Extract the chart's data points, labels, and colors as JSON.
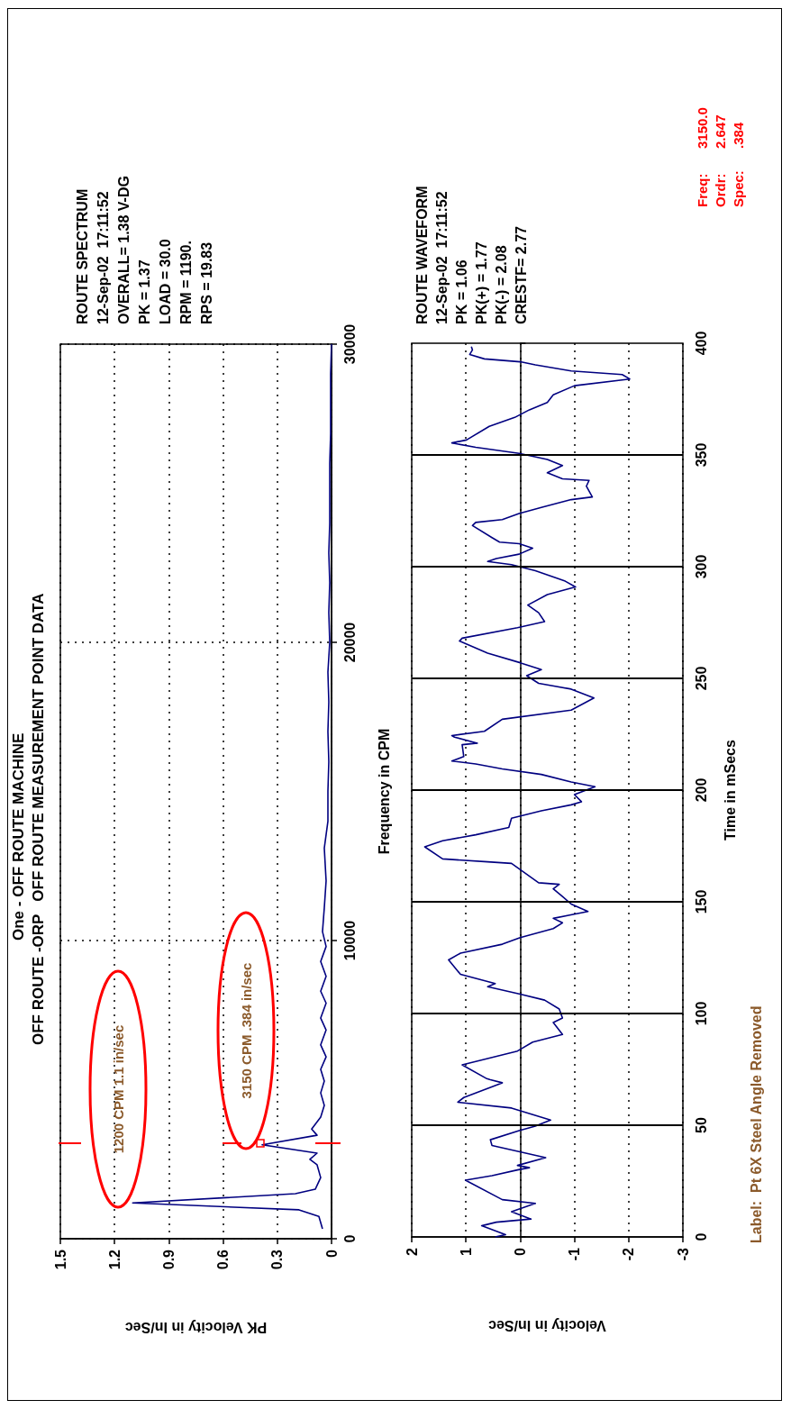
{
  "chart_data": [
    {
      "type": "line",
      "title": "One - OFF ROUTE MACHINE",
      "subtitle": "OFF ROUTE -ORP   OFF ROUTE MEASUREMENT POINT DATA",
      "xlabel": "PK Velocity in In/Sec",
      "ylabel": "Frequency in CPM",
      "x": [
        0.05,
        0.07,
        0.18,
        1.1,
        0.2,
        0.09,
        0.06,
        0.08,
        0.12,
        0.08,
        0.384,
        0.08,
        0.11,
        0.06,
        0.04,
        0.06,
        0.04,
        0.06,
        0.03,
        0.06,
        0.03,
        0.06,
        0.03,
        0.06,
        0.03,
        0.06,
        0.03,
        0.05,
        0.04,
        0.03,
        0.04,
        0.02,
        0.02,
        0.015,
        0.02,
        0.015,
        0.02,
        0.01,
        0.015,
        0.01,
        0.015,
        0.01,
        0.01,
        0.01,
        0.005,
        0.005,
        0.005,
        0
      ],
      "values": [
        330,
        750,
        970,
        1200,
        1510,
        1660,
        2050,
        2480,
        2660,
        2870,
        3150,
        3470,
        3680,
        4080,
        4470,
        4890,
        5290,
        5680,
        6100,
        6500,
        7000,
        7400,
        7900,
        8300,
        8800,
        9300,
        9800,
        10300,
        11100,
        12000,
        13100,
        14000,
        15000,
        16000,
        17000,
        18000,
        19000,
        20000,
        21000,
        22000,
        23000,
        24000,
        25000,
        26000,
        27000,
        28000,
        29000,
        30000
      ],
      "color": "#000080",
      "xlim": [
        1.5,
        0
      ],
      "xticks": [
        0,
        0.3,
        0.6,
        0.9,
        1.2,
        1.5
      ],
      "ylim": [
        0,
        30000
      ],
      "yticks": [
        0,
        10000,
        20000,
        30000
      ],
      "grid": true,
      "annotations": [
        "1200 CPM 1.1 in/sec",
        "3150 CPM .384 in/sec",
        "ROUTE SPECTRUM\n12-Sep-02  17:11:52\nOVERALL= 1.38 V-DG\nPK = 1.37\nLOAD = 30.0\nRPM = 1190.\nRPS = 19.83"
      ]
    },
    {
      "type": "line",
      "xlabel": "Velocity in In/Sec",
      "ylabel": "Time in mSecs",
      "x": [
        0.46,
        0.27,
        0.71,
        0.44,
        -0.2,
        0.16,
        -0.28,
        0.33,
        1.01,
        0.52,
        0.05,
        -0.17,
        0.05,
        -0.47,
        0.52,
        0.55,
        0.02,
        -0.28,
        -0.56,
        0.16,
        1.15,
        1.04,
        0.33,
        0.55,
        0.63,
        1.07,
        0.05,
        -0.23,
        -0.78,
        -0.61,
        -0.78,
        -0.72,
        -0.45,
        0,
        0.6,
        0.46,
        1.1,
        1.32,
        1.1,
        0.33,
        0,
        -0.61,
        -0.78,
        -0.61,
        -1.25,
        -0.94,
        -0.78,
        -0.61,
        -0.72,
        -0.34,
        0.16,
        0.6,
        1.43,
        1.76,
        1.43,
        0.82,
        0.21,
        0.16,
        -0.39,
        -0.94,
        -1.13,
        -1,
        -1.38,
        -0.94,
        -0.39,
        0.33,
        0.82,
        1.26,
        1.04,
        1.07,
        0.79,
        1.21,
        1.26,
        0.66,
        0.33,
        -0.94,
        -1.36,
        -0.94,
        -0.34,
        -0.12,
        -0.39,
        0,
        0.6,
        1.12,
        1.07,
        0.05,
        -0.45,
        -0.34,
        -0.14,
        -0.5,
        -1.02,
        -0.83,
        -0.28,
        0.16,
        0.6,
        0.44,
        0.02,
        -0.23,
        0.02,
        0.38,
        0.52,
        0.88,
        0.82,
        0.33,
        0.02,
        -0.39,
        -0.94,
        -1.33,
        -1.22,
        -1.27,
        -0.78,
        -0.5,
        -0.78,
        -0.5,
        0.02,
        0.82,
        1.26,
        0.99,
        0.57,
        0.1,
        -0.17,
        -0.5,
        -0.61,
        -1,
        -2.02,
        -1.88,
        -0.94,
        -0.28,
        0,
        0.66,
        0.93,
        0.88,
        0.9
      ],
      "values": [
        0,
        1,
        5,
        6.6,
        8,
        11.3,
        15,
        16.7,
        25.4,
        27.4,
        30,
        31,
        32,
        35.5,
        40.9,
        43.5,
        47.6,
        49.6,
        52.3,
        57.7,
        60.3,
        62.4,
        69,
        70.4,
        71,
        77,
        83.2,
        87.2,
        90.6,
        96,
        98,
        102,
        106,
        108.7,
        112,
        113.4,
        117.5,
        124,
        127,
        131,
        134,
        138,
        140.6,
        142.6,
        145.7,
        149,
        152.4,
        155.8,
        157.8,
        158.5,
        167.2,
        167.9,
        169.2,
        174.6,
        177.3,
        180,
        183.3,
        187.4,
        190.7,
        193.4,
        194.8,
        198,
        201.5,
        203.6,
        207,
        209.5,
        211.7,
        213,
        215,
        220.3,
        221,
        223.7,
        224.4,
        226.3,
        231.7,
        235.8,
        241.2,
        245.2,
        247.8,
        251.2,
        253.9,
        257,
        261.3,
        266.7,
        268,
        272.7,
        275.4,
        279.4,
        282.8,
        287.5,
        290.9,
        293.5,
        298.2,
        300.9,
        302.3,
        303.6,
        305.6,
        308.3,
        310.3,
        311,
        313,
        318.4,
        319.8,
        321.1,
        323.8,
        326.5,
        330,
        331.2,
        336,
        338.6,
        339.3,
        342,
        345.3,
        348,
        350.7,
        353.4,
        355.4,
        356.7,
        362.8,
        366.8,
        370.2,
        373.5,
        376.9,
        381,
        384,
        386,
        387.6,
        390.3,
        391.7,
        393,
        395,
        397,
        398.5
      ],
      "color": "#000080",
      "xlim": [
        2,
        -3
      ],
      "xticks": [
        -3,
        -2,
        -1,
        0,
        1,
        2
      ],
      "ylim": [
        0,
        400
      ],
      "yticks": [
        0,
        50,
        100,
        150,
        200,
        250,
        300,
        350,
        400
      ],
      "grid": "x",
      "ref_lines": [
        {
          "axis": "y",
          "value": 50,
          "color": "#000000",
          "line_style": "solid"
        },
        {
          "axis": "y",
          "value": 100,
          "color": "#000000",
          "line_style": "solid"
        },
        {
          "axis": "y",
          "value": 150,
          "color": "#000000",
          "line_style": "solid"
        },
        {
          "axis": "y",
          "value": 200,
          "color": "#000000",
          "line_style": "solid"
        },
        {
          "axis": "y",
          "value": 250,
          "color": "#000000",
          "line_style": "solid"
        },
        {
          "axis": "y",
          "value": 300,
          "color": "#000000",
          "line_style": "solid"
        },
        {
          "axis": "y",
          "value": 350,
          "color": "#000000",
          "line_style": "solid"
        }
      ],
      "annotations": [
        "ROUTE WAVEFORM\n12-Sep-02  17:11:52\nPK = 1.06\nPK(+) = 1.77\nPK(-) = 2.08\nCRESTF= 2.77",
        "Freq: 3150.0",
        "Ordr: 2.647",
        "Spec: .384",
        "Label:  Pt 6X Steel Angle Removed"
      ]
    }
  ]
}
